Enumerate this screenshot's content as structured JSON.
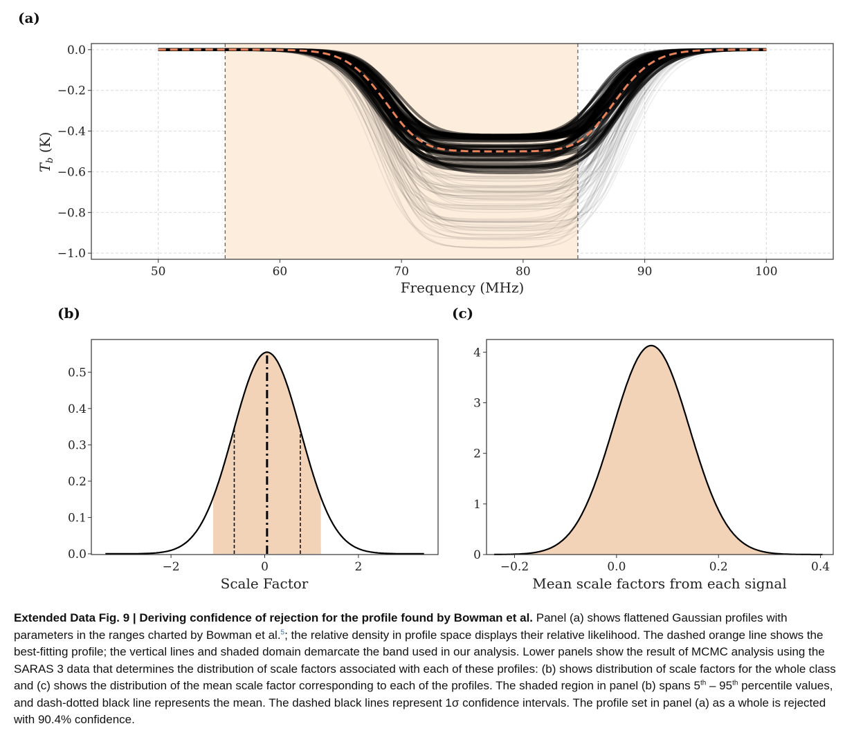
{
  "chart_data": [
    {
      "panel": "(a)",
      "type": "line",
      "xlabel": "Frequency (MHz)",
      "ylabel": "T_b (K)",
      "xlim": [
        44.5,
        105.5
      ],
      "ylim": [
        -1.03,
        0.03
      ],
      "x_ticks": [
        50,
        60,
        70,
        80,
        90,
        100
      ],
      "y_ticks": [
        0.0,
        -0.2,
        -0.4,
        -0.6,
        -0.8,
        -1.0
      ],
      "x_tick_labels": [
        "50",
        "60",
        "70",
        "80",
        "90",
        "100"
      ],
      "y_tick_labels": [
        "0.0",
        "−0.2",
        "−0.4",
        "−0.6",
        "−0.8",
        "−1.0"
      ],
      "band": [
        55.5,
        84.5
      ],
      "best_fit_profile": {
        "center": 78.1,
        "width": 19.0,
        "amplitude": -0.5,
        "tau": 6.5
      },
      "ensemble_amplitude_range": [
        -0.42,
        -0.98
      ],
      "grid": true
    },
    {
      "panel": "(b)",
      "type": "area",
      "xlabel": "Scale Factor",
      "ylabel": "",
      "xlim": [
        -3.7,
        3.7
      ],
      "ylim": [
        -0.002,
        0.59
      ],
      "x_ticks": [
        -2,
        0,
        2
      ],
      "x_tick_labels": [
        "−2",
        "0",
        "2"
      ],
      "y_ticks": [
        0.0,
        0.1,
        0.2,
        0.3,
        0.4,
        0.5
      ],
      "y_tick_labels": [
        "0.0",
        "0.1",
        "0.2",
        "0.3",
        "0.4",
        "0.5"
      ],
      "distribution": {
        "mean": 0.05,
        "sigma": 0.72,
        "peak": 0.555,
        "x_range": [
          -3.4,
          3.4
        ]
      },
      "shaded_percentile_5_95": [
        -1.1,
        1.2
      ],
      "mean_line": 0.05,
      "one_sigma_lines": [
        -0.65,
        0.76
      ]
    },
    {
      "panel": "(c)",
      "type": "area",
      "xlabel": "Mean scale factors from each signal",
      "ylabel": "",
      "xlim": [
        -0.255,
        0.425
      ],
      "ylim": [
        0,
        4.25
      ],
      "x_ticks": [
        -0.2,
        0.0,
        0.2,
        0.4
      ],
      "x_tick_labels": [
        "−0.2",
        "0.0",
        "0.2",
        "0.4"
      ],
      "y_ticks": [
        0,
        1,
        2,
        3,
        4
      ],
      "y_tick_labels": [
        "0",
        "1",
        "2",
        "3",
        "4"
      ],
      "distribution": {
        "mean": 0.068,
        "sigma": 0.075,
        "peak": 4.13,
        "x_range": [
          -0.24,
          0.405
        ]
      }
    }
  ],
  "panels": {
    "a": "(a)",
    "b": "(b)",
    "c": "(c)"
  },
  "axis": {
    "a_xlabel": "Frequency (MHz)",
    "a_ylabel_main": "T",
    "a_ylabel_sub": "b",
    "a_ylabel_unit": " (K)",
    "b_xlabel": "Scale Factor",
    "c_xlabel": "Mean scale factors from each signal"
  },
  "colors": {
    "band_fill": "#fdeddd",
    "area_fill": "#f3d3b8",
    "best_fit": "#e8825a",
    "ensemble": "#000000",
    "frame": "#333333"
  },
  "caption": {
    "title": "Extended Data Fig. 9 | Deriving confidence of rejection for the profile found by Bowman et al.",
    "part1": " Panel (a) shows flattened Gaussian profiles with parameters in the ranges charted by Bowman et al.",
    "ref": "5",
    "part2": "; the relative density in profile space displays their relative likelihood. The dashed orange line shows the best-fitting profile; the vertical lines and shaded domain demarcate the band used in our analysis. Lower panels show the result of MCMC analysis using the SARAS 3 data that determines the distribution of scale factors associated with each of these profiles: (b) shows distribution of scale factors for the whole class and (c) shows the distribution of the mean scale factor corresponding to each of the profiles. The shaded region in panel (b) spans 5",
    "sup1": "th",
    "part3": " – 95",
    "sup2": "th",
    "part4": " percentile values, and dash-dotted black line represents the mean. The dashed black lines represent 1σ confidence intervals. The profile set in panel (a) as a whole is rejected with 90.4% confidence."
  }
}
